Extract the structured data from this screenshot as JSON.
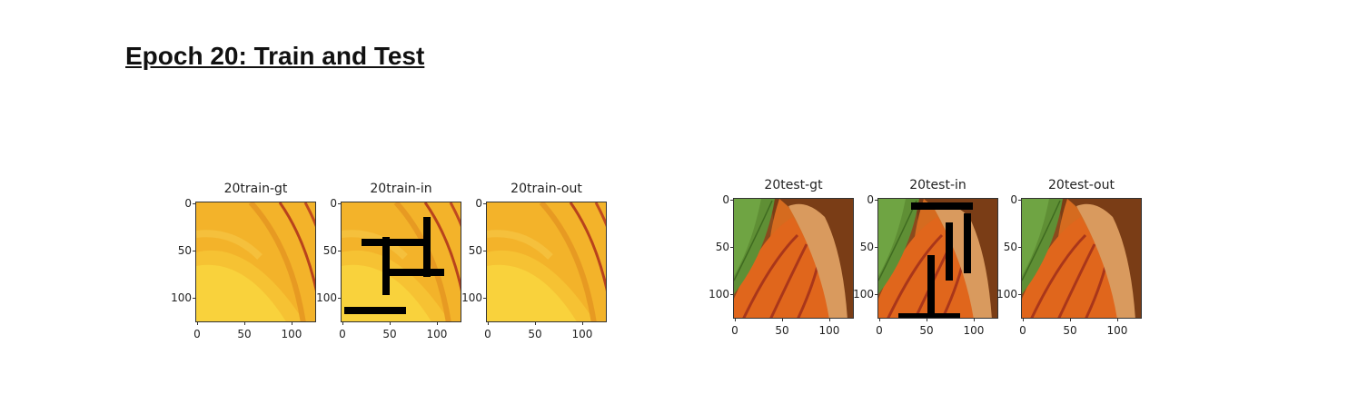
{
  "heading": "Epoch 20: Train and Test",
  "groups": [
    {
      "name": "train",
      "panels": [
        {
          "title": "20train-gt",
          "image": "peach-slice-closeup",
          "mask": false
        },
        {
          "title": "20train-in",
          "image": "peach-slice-closeup",
          "mask": true
        },
        {
          "title": "20train-out",
          "image": "peach-slice-closeup",
          "mask": false
        }
      ]
    },
    {
      "name": "test",
      "panels": [
        {
          "title": "20test-gt",
          "image": "fruit-with-leaf-closeup",
          "mask": false
        },
        {
          "title": "20test-in",
          "image": "fruit-with-leaf-closeup",
          "mask": true
        },
        {
          "title": "20test-out",
          "image": "fruit-with-leaf-closeup",
          "mask": false
        }
      ]
    }
  ],
  "y_ticks": [
    "0",
    "50",
    "100"
  ],
  "x_ticks": [
    "0",
    "50",
    "100"
  ]
}
